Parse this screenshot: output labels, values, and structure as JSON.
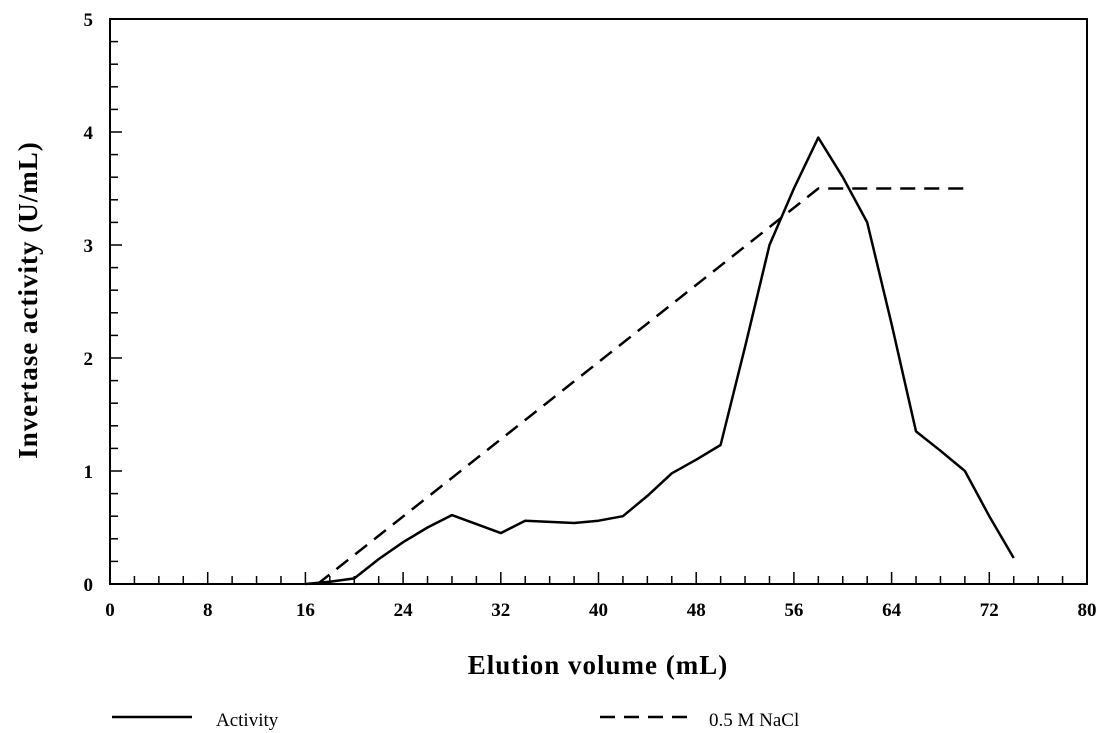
{
  "chart_data": {
    "type": "line",
    "xlabel": "Elution volume (mL)",
    "ylabel": "Invertase activity (U/mL)",
    "xlim": [
      0,
      80
    ],
    "ylim": [
      0,
      5
    ],
    "x_ticks": [
      0,
      8,
      16,
      24,
      32,
      40,
      48,
      56,
      64,
      72,
      80
    ],
    "y_ticks": [
      0,
      1,
      2,
      3,
      4,
      5
    ],
    "x_minor_step": 2,
    "y_minor_step": 0.2,
    "grid": false,
    "legend_position": "bottom",
    "series": [
      {
        "name": "Activity",
        "style": "solid",
        "color": "#000000",
        "x": [
          16,
          18,
          20,
          22,
          24,
          26,
          28,
          30,
          32,
          34,
          36,
          38,
          40,
          42,
          44,
          46,
          48,
          50,
          52,
          54,
          56,
          58,
          60,
          62,
          64,
          66,
          68,
          70,
          72,
          74
        ],
        "y": [
          0.0,
          0.02,
          0.05,
          0.22,
          0.37,
          0.5,
          0.61,
          0.53,
          0.45,
          0.56,
          0.55,
          0.54,
          0.56,
          0.6,
          0.78,
          0.98,
          1.1,
          1.23,
          2.1,
          3.0,
          3.5,
          3.95,
          3.6,
          3.2,
          2.3,
          1.35,
          1.18,
          1.0,
          0.6,
          0.23
        ]
      },
      {
        "name": "0.5 M NaCl",
        "style": "dashed",
        "color": "#000000",
        "x": [
          17,
          58,
          70
        ],
        "y": [
          0.0,
          3.5,
          3.5
        ]
      }
    ]
  }
}
